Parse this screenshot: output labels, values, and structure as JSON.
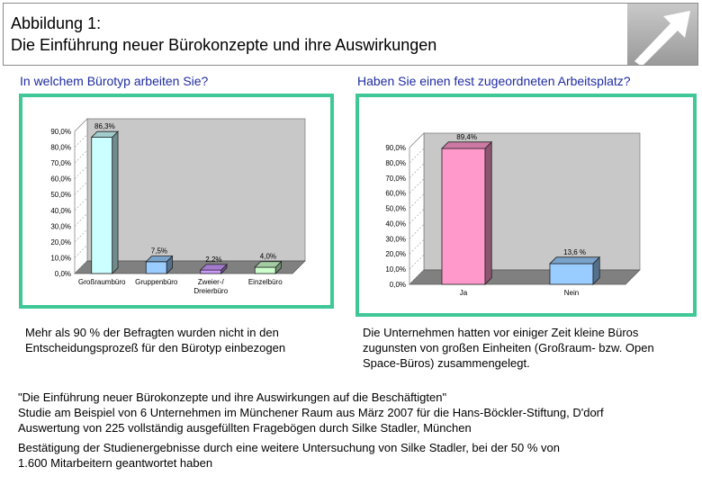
{
  "header": {
    "title_line1": "Abbildung 1:",
    "title_line2": "Die Einführung neuer Bürokonzepte und ihre Auswirkungen",
    "arrow_icon": "arrow-up-right-icon"
  },
  "left": {
    "question": "In welchem Bürotyp arbeiten Sie?",
    "caption": "Mehr als 90 % der Befragten wurden nicht in den Entscheidungsprozeß für den Bürotyp einbezogen"
  },
  "right": {
    "question": "Haben Sie einen fest zugeordneten Arbeitsplatz?",
    "caption": "Die Unternehmen hatten vor einiger Zeit kleine Büros zugunsten von großen Einheiten (Großraum- bzw. Open Space-Büros) zusammengelegt."
  },
  "source": {
    "line1": "\"Die Einführung neuer Bürokonzepte und ihre Auswirkungen auf die Beschäftigten\"",
    "line2": "Studie am Beispiel von 6 Unternehmen im Münchener Raum aus März 2007 für die Hans-Böckler-Stiftung, D'dorf",
    "line3": "Auswertung von 225 vollständig ausgefüllten Fragebögen durch Silke Stadler, München",
    "confirm1": "Bestätigung der Studienergebnisse durch eine weitere Untersuchung von Silke Stadler, bei der 50 % von",
    "confirm2": "1.600 Mitarbeitern geantwortet haben"
  },
  "chart_data": [
    {
      "type": "bar",
      "categories": [
        "Großraumbüro",
        "Gruppenbüro",
        "Zweier-/ Dreierbüro",
        "Einzelbüro"
      ],
      "values": [
        86.3,
        7.5,
        2.2,
        4.0
      ],
      "data_labels": [
        "86,3%",
        "7,5%",
        "2,2%",
        "4,0%"
      ],
      "colors": [
        "#ccffff",
        "#99ccff",
        "#cc99ff",
        "#ccffcc"
      ],
      "ylim": [
        0,
        90
      ],
      "yticks": [
        "0,0%",
        "10,0%",
        "20,0%",
        "30,0%",
        "40,0%",
        "50,0%",
        "60,0%",
        "70,0%",
        "80,0%",
        "90,0%"
      ],
      "grid": false,
      "style": "3d"
    },
    {
      "type": "bar",
      "categories": [
        "Ja",
        "Nein"
      ],
      "values": [
        89.4,
        13.6
      ],
      "data_labels": [
        "89,4%",
        "13,6 %"
      ],
      "colors": [
        "#ff99cc",
        "#99ccff"
      ],
      "ylim": [
        0,
        90
      ],
      "yticks": [
        "0,0%",
        "10,0%",
        "20,0%",
        "30,0%",
        "40,0%",
        "50,0%",
        "60,0%",
        "70,0%",
        "80,0%",
        "90,0%"
      ],
      "grid": false,
      "style": "3d"
    }
  ]
}
